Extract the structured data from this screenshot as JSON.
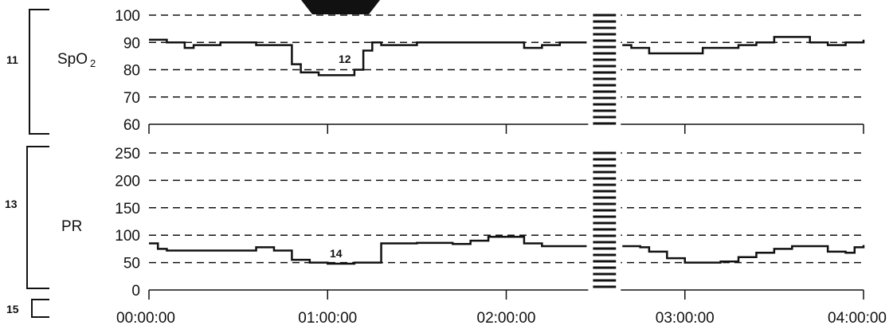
{
  "chart_data": [
    {
      "type": "line",
      "ylabel": "SpO",
      "ylabel_sub": "2",
      "ylim": [
        60,
        100
      ],
      "yticks": [
        "60",
        "70",
        "80",
        "90",
        "100"
      ],
      "x": [
        0,
        0.1,
        0.2,
        0.25,
        0.3,
        0.4,
        0.5,
        0.6,
        0.7,
        0.75,
        0.8,
        0.85,
        0.95,
        1.0,
        1.05,
        1.1,
        1.15,
        1.2,
        1.25,
        1.3,
        1.4,
        1.5,
        1.6,
        1.7,
        1.8,
        1.9,
        2.0,
        2.1,
        2.2,
        2.3,
        2.4,
        2.45
      ],
      "values": [
        91,
        90,
        88,
        89,
        89,
        90,
        90,
        89,
        89,
        89,
        82,
        79,
        78,
        78,
        78,
        78,
        80,
        87,
        90,
        89,
        89,
        90,
        90,
        90,
        90,
        90,
        90,
        88,
        89,
        90,
        90,
        90
      ],
      "x2": [
        2.65,
        2.7,
        2.8,
        2.9,
        3.0,
        3.1,
        3.2,
        3.3,
        3.4,
        3.5,
        3.6,
        3.7,
        3.8,
        3.9,
        4.0
      ],
      "values2": [
        89,
        88,
        86,
        86,
        86,
        88,
        88,
        89,
        90,
        92,
        92,
        90,
        89,
        90,
        91
      ],
      "gridlines": [
        70,
        80,
        90,
        100
      ],
      "callout": "12",
      "bracket_label": "11"
    },
    {
      "type": "line",
      "ylabel": "PR",
      "ylim": [
        0,
        250
      ],
      "yticks": [
        "0",
        "50",
        "100",
        "150",
        "200",
        "250"
      ],
      "x": [
        0,
        0.05,
        0.1,
        0.3,
        0.5,
        0.6,
        0.7,
        0.8,
        0.9,
        1.0,
        1.1,
        1.15,
        1.3,
        1.5,
        1.6,
        1.7,
        1.8,
        1.9,
        2.0,
        2.1,
        2.2,
        2.3,
        2.45
      ],
      "values": [
        85,
        75,
        72,
        72,
        72,
        78,
        72,
        55,
        50,
        48,
        48,
        50,
        85,
        86,
        86,
        84,
        90,
        97,
        97,
        85,
        80,
        80,
        80
      ],
      "x2": [
        2.65,
        2.75,
        2.8,
        2.9,
        3.0,
        3.1,
        3.2,
        3.3,
        3.4,
        3.5,
        3.6,
        3.7,
        3.8,
        3.9,
        3.95,
        4.0
      ],
      "values2": [
        80,
        78,
        70,
        58,
        50,
        50,
        52,
        60,
        68,
        75,
        80,
        80,
        70,
        68,
        78,
        82
      ],
      "gridlines": [
        50,
        100,
        150,
        200,
        250
      ],
      "callout": "14",
      "bracket_label": "13"
    }
  ],
  "x_axis": {
    "range": [
      0,
      4
    ],
    "tick_values": [
      0,
      1,
      2,
      3,
      4
    ],
    "labels": [
      "00:00:00",
      "01:00:00",
      "02:00:00",
      "03:00:00",
      "04:00:00"
    ],
    "break": [
      2.45,
      2.65
    ],
    "bracket_label": "15"
  },
  "colors": {
    "line": "#111111",
    "grid": "#111111"
  }
}
